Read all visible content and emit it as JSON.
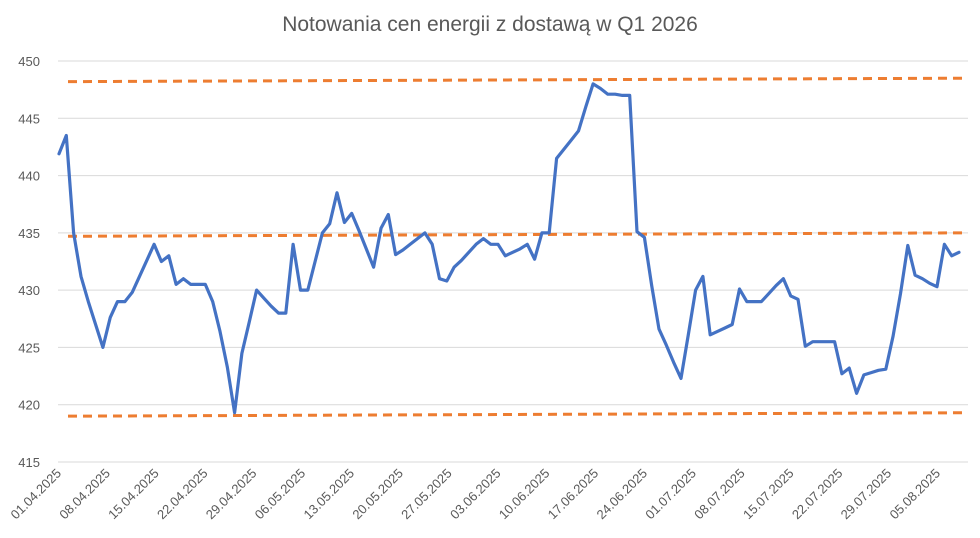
{
  "chart_data": {
    "type": "line",
    "title": "Notowania cen energii z dostawą w Q1 2026",
    "xlabel": "",
    "ylabel": "",
    "ylim": [
      415,
      450
    ],
    "yticks": [
      415,
      420,
      425,
      430,
      435,
      440,
      445,
      450
    ],
    "grid": true,
    "xtick_labels": [
      "01.04.2025",
      "08.04.2025",
      "15.04.2025",
      "22.04.2025",
      "29.04.2025",
      "06.05.2025",
      "13.05.2025",
      "20.05.2025",
      "27.05.2025",
      "03.06.2025",
      "10.06.2025",
      "17.06.2025",
      "24.06.2025",
      "01.07.2025",
      "08.07.2025",
      "15.07.2025",
      "22.07.2025",
      "29.07.2025",
      "05.08.2025"
    ],
    "series": [
      {
        "name": "Notowania",
        "color": "#4472C4",
        "values": [
          441.9,
          443.5,
          435.0,
          431.2,
          429.0,
          427.0,
          425.0,
          427.6,
          429.0,
          429.0,
          429.8,
          431.2,
          432.6,
          434.0,
          432.5,
          433.0,
          430.5,
          431.0,
          430.5,
          430.5,
          430.5,
          429.0,
          426.4,
          423.3,
          419.3,
          424.5,
          427.2,
          430.0,
          429.3,
          428.6,
          428.0,
          428.0,
          434.0,
          430.0,
          430.0,
          432.5,
          435.0,
          435.8,
          438.5,
          435.9,
          436.7,
          435.2,
          433.6,
          432.0,
          435.4,
          436.6,
          433.1,
          433.5,
          434.0,
          434.5,
          435.0,
          434.0,
          431.0,
          430.8,
          432.0,
          432.6,
          433.3,
          434.0,
          434.5,
          434.0,
          434.0,
          433.0,
          433.3,
          433.6,
          434.0,
          432.7,
          435.0,
          435.0,
          441.5,
          442.3,
          443.1,
          443.9,
          446.0,
          448.0,
          447.6,
          447.1,
          447.1,
          447.0,
          447.0,
          435.1,
          434.6,
          430.4,
          426.6,
          425.2,
          423.7,
          422.3,
          426.1,
          430.0,
          431.2,
          426.1,
          426.4,
          426.7,
          427.0,
          430.1,
          429.0,
          429.0,
          429.0,
          429.7,
          430.4,
          431.0,
          429.5,
          429.2,
          425.1,
          425.5,
          425.5,
          425.5,
          425.5,
          422.7,
          423.2,
          421.0,
          422.6,
          422.8,
          423.0,
          423.1,
          426.0,
          429.7,
          433.9,
          431.3,
          431.0,
          430.6,
          430.3,
          434.0,
          433.0,
          433.3
        ]
      }
    ],
    "trend_lines": [
      {
        "name": "upper",
        "color": "#ED7D31",
        "style": "dashed",
        "start": 448.2,
        "end": 448.5
      },
      {
        "name": "middle",
        "color": "#ED7D31",
        "style": "dashed",
        "start": 434.7,
        "end": 435.0
      },
      {
        "name": "lower",
        "color": "#ED7D31",
        "style": "dashed",
        "start": 419.0,
        "end": 419.3
      }
    ]
  }
}
